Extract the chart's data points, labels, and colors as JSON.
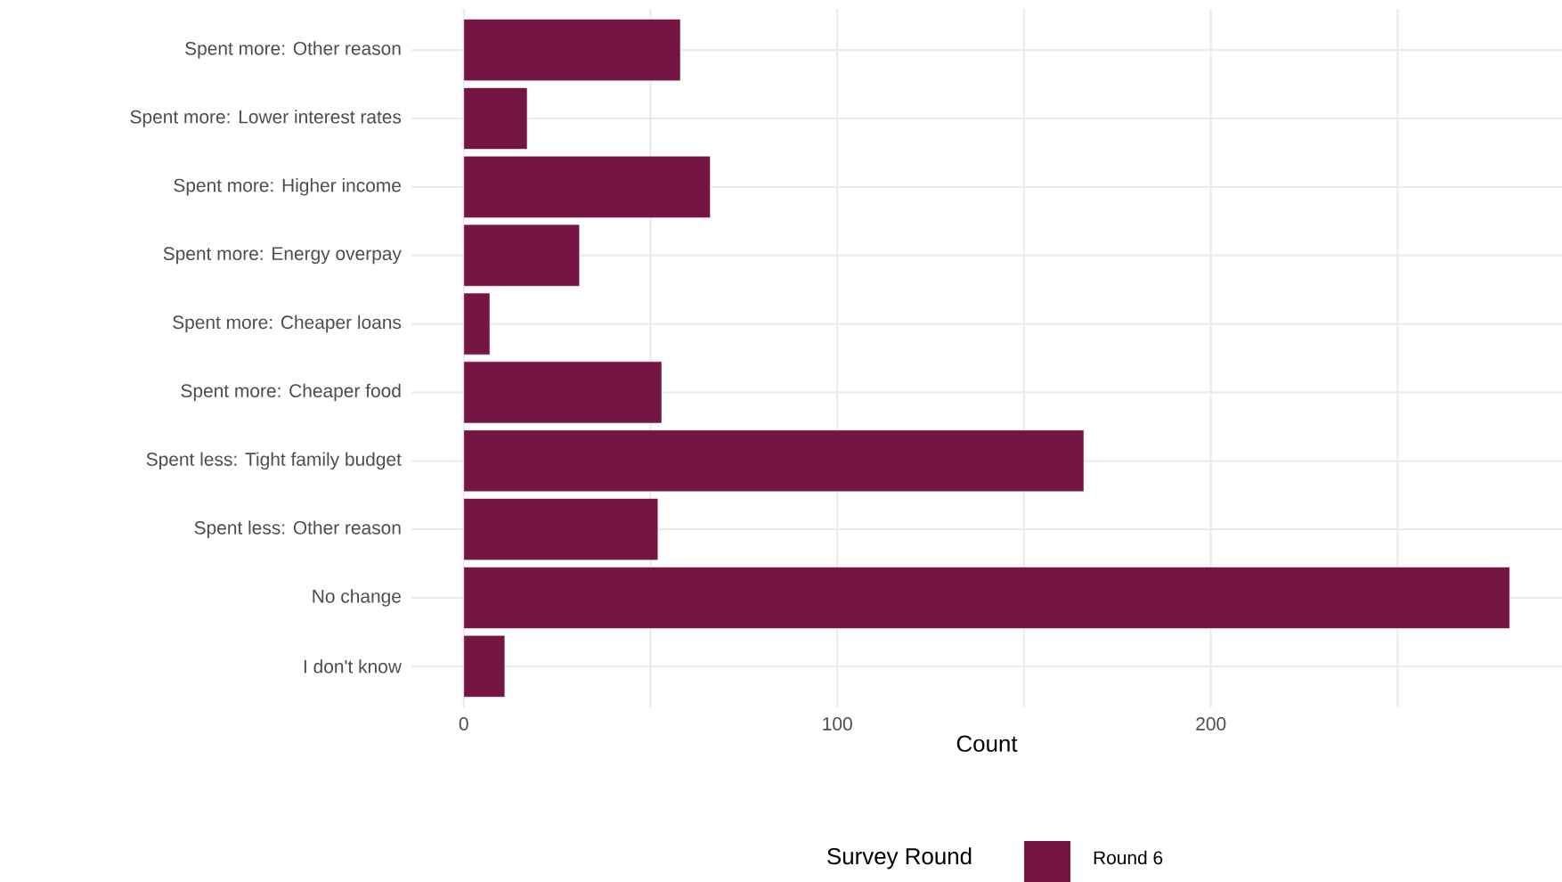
{
  "chart_data": {
    "type": "bar",
    "orientation": "horizontal",
    "xlabel": "Count",
    "legend_title": "Survey Round",
    "categories": [
      "Spent more: Other reason",
      "Spent more: Lower interest rates",
      "Spent more: Higher income",
      "Spent more: Energy overpay",
      "Spent more: Cheaper loans",
      "Spent more: Cheaper food",
      "Spent less: Tight family budget",
      "Spent less: Other reason",
      "No change",
      "I don't know"
    ],
    "series": [
      {
        "name": "Round 6",
        "color": "#751542",
        "values": [
          58,
          17,
          66,
          31,
          7,
          53,
          166,
          52,
          280,
          11
        ]
      }
    ],
    "xlim": [
      -14,
      294
    ],
    "xticks": [
      0,
      {
        "value": 50,
        "label": null
      },
      100,
      {
        "value": 150,
        "label": null
      },
      200,
      {
        "value": 250,
        "label": null
      }
    ],
    "grid": true,
    "legend": "bottom"
  }
}
